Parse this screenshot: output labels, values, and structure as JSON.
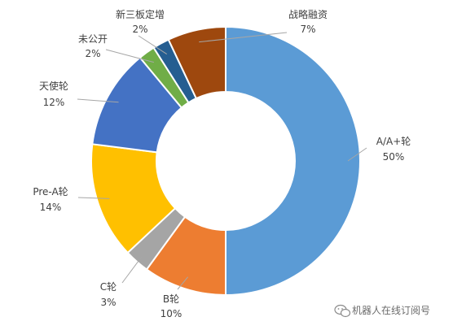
{
  "chart_data": {
    "type": "pie",
    "variant": "donut",
    "slices": [
      {
        "label": "A/A+轮",
        "pct": "50%",
        "value": 50,
        "color": "#5B9BD5"
      },
      {
        "label": "B轮",
        "pct": "10%",
        "value": 10,
        "color": "#ED7D31"
      },
      {
        "label": "C轮",
        "pct": "3%",
        "value": 3,
        "color": "#A5A5A5"
      },
      {
        "label": "Pre-A轮",
        "pct": "14%",
        "value": 14,
        "color": "#FFC000"
      },
      {
        "label": "天使轮",
        "pct": "12%",
        "value": 12,
        "color": "#4472C4"
      },
      {
        "label": "未公开",
        "pct": "2%",
        "value": 2,
        "color": "#70AD47"
      },
      {
        "label": "新三板定增",
        "pct": "2%",
        "value": 2,
        "color": "#255E91"
      },
      {
        "label": "战略融资",
        "pct": "7%",
        "value": 7,
        "color": "#9E480E"
      }
    ]
  },
  "watermark": {
    "text": "机器人在线订阅号"
  }
}
